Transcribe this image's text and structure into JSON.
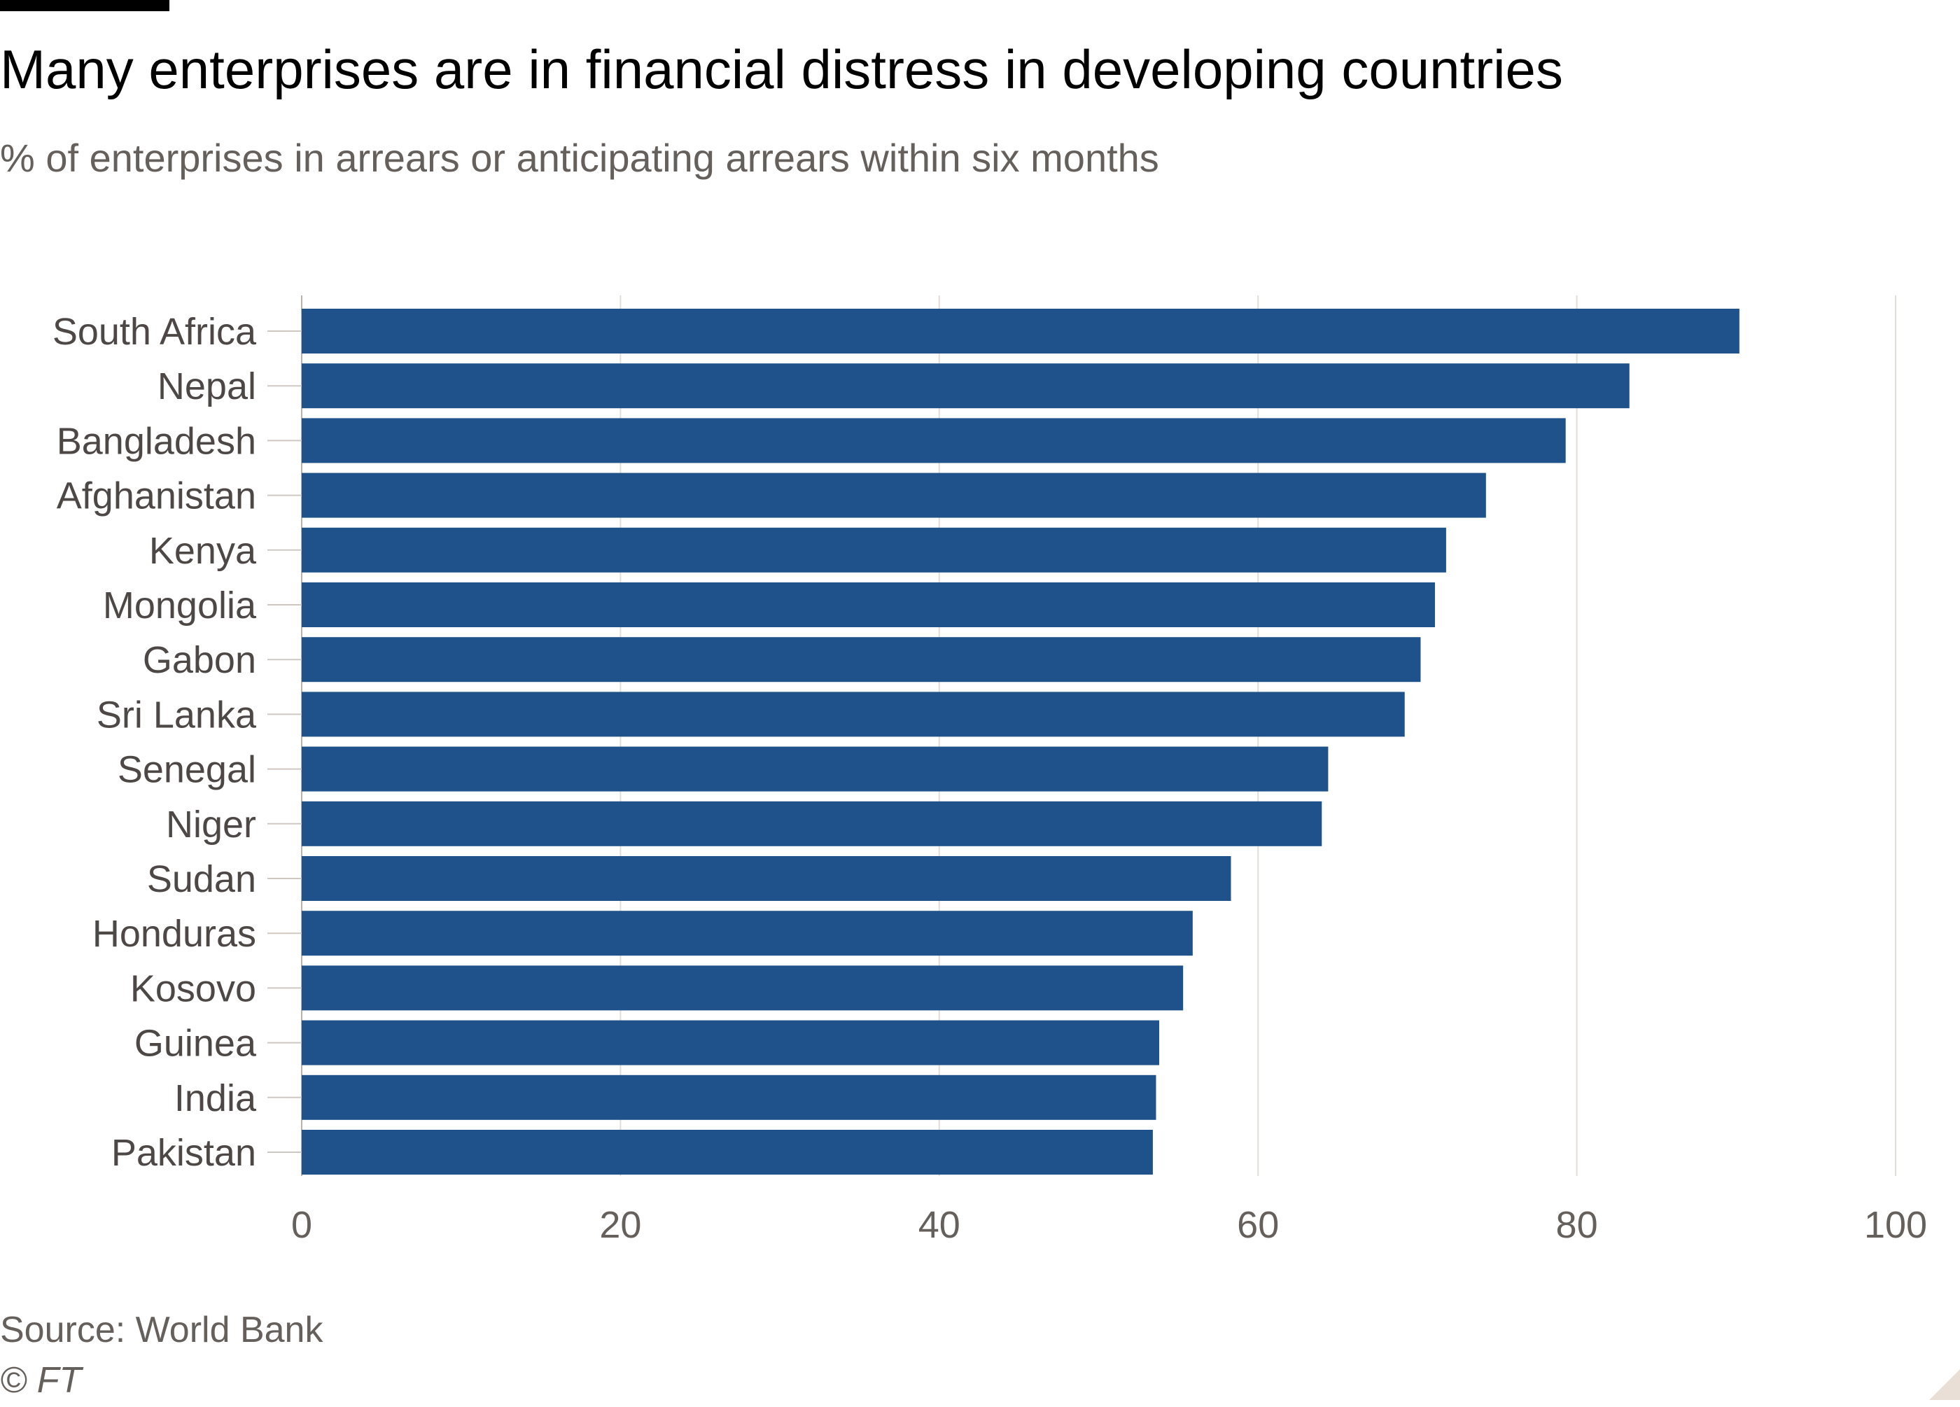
{
  "title": "Many enterprises are in financial distress in developing countries",
  "subtitle": "% of enterprises in arrears or anticipating arrears within six months",
  "source": "Source: World Bank",
  "copyright": "© FT",
  "colors": {
    "bar": "#1f528a",
    "grid": "#e2ddd8",
    "axis": "#66605c",
    "label": "#4d4845",
    "background": "#ffffff"
  },
  "chart_data": {
    "type": "bar",
    "orientation": "horizontal",
    "categories": [
      "South Africa",
      "Nepal",
      "Bangladesh",
      "Afghanistan",
      "Kenya",
      "Mongolia",
      "Gabon",
      "Sri Lanka",
      "Senegal",
      "Niger",
      "Sudan",
      "Honduras",
      "Kosovo",
      "Guinea",
      "India",
      "Pakistan"
    ],
    "values": [
      90.2,
      83.3,
      79.3,
      74.3,
      71.8,
      71.1,
      70.2,
      69.2,
      64.4,
      64.0,
      58.3,
      55.9,
      55.3,
      53.8,
      53.6,
      53.4
    ],
    "xlim": [
      0,
      100
    ],
    "xticks": [
      0,
      20,
      40,
      60,
      80,
      100
    ],
    "tick_labels": [
      "0",
      "20",
      "40",
      "60",
      "80",
      "100"
    ],
    "grid": true,
    "legend": "none"
  }
}
